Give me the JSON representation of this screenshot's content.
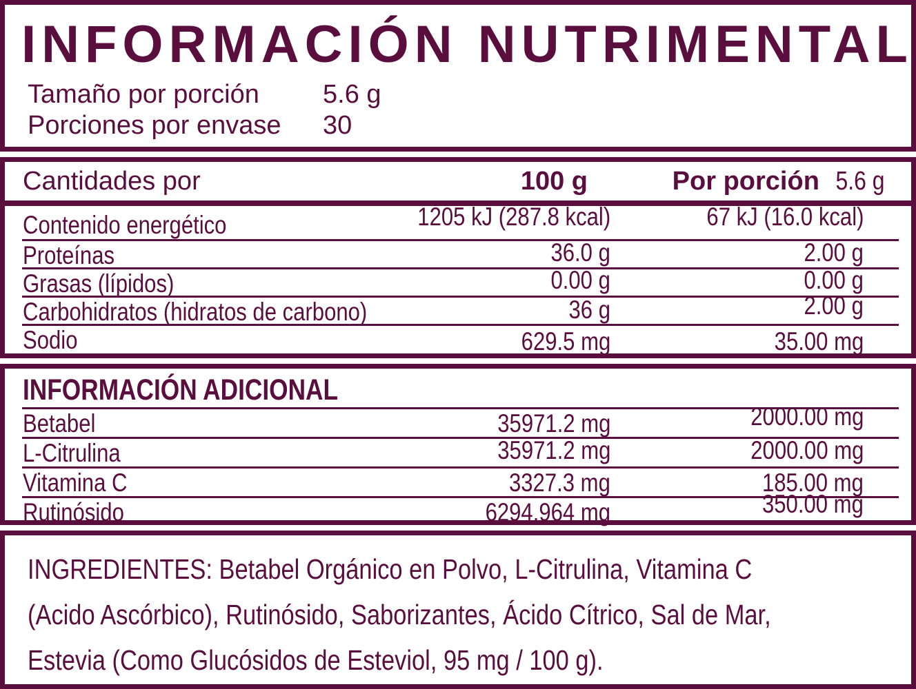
{
  "colors": {
    "accent_maroon": "#5a0e3e",
    "background": "#ffffff"
  },
  "header": {
    "title": "INFORMACIÓN NUTRIMENTAL",
    "serving_size_label": "Tamaño por porción",
    "serving_size_value": "5.6 g",
    "servings_per_container_label": "Porciones por envase",
    "servings_per_container_value": "30"
  },
  "table": {
    "header": {
      "label": "Cantidades por",
      "col_100g": "100 g",
      "col_portion_label": "Por porción",
      "col_portion_value": "5.6 g"
    },
    "rows": [
      {
        "label": "Contenido energético",
        "per_100g": "1205 kJ (287.8 kcal)",
        "per_portion": "67 kJ (16.0 kcal)"
      },
      {
        "label": "Proteínas",
        "per_100g": "36.0 g",
        "per_portion": "2.00 g"
      },
      {
        "label": "Grasas (lípidos)",
        "per_100g": "0.00 g",
        "per_portion": "0.00 g"
      },
      {
        "label": "Carbohidratos (hidratos de carbono)",
        "per_100g": "36 g",
        "per_portion": "2.00 g"
      },
      {
        "label": "Sodio",
        "per_100g": "629.5 mg",
        "per_portion": "35.00 mg"
      }
    ]
  },
  "additional": {
    "title": "INFORMACIÓN ADICIONAL",
    "rows": [
      {
        "label": "Betabel",
        "per_100g": "35971.2 mg",
        "per_portion": "2000.00 mg"
      },
      {
        "label": "L-Citrulina",
        "per_100g": "35971.2 mg",
        "per_portion": "2000.00 mg"
      },
      {
        "label": "Vitamina C",
        "per_100g": "3327.3 mg",
        "per_portion": "185.00 mg"
      },
      {
        "label": "Rutinósido",
        "per_100g": "6294.964 mg",
        "per_portion": "350.00 mg"
      }
    ]
  },
  "ingredients": {
    "lines": [
      "INGREDIENTES: Betabel Orgánico en Polvo, L-Citrulina, Vitamina C",
      "(Acido Ascórbico), Rutinósido, Saborizantes, Ácido Cítrico, Sal de Mar,",
      "Estevia (Como Glucósidos de Esteviol, 95 mg / 100 g)."
    ]
  }
}
